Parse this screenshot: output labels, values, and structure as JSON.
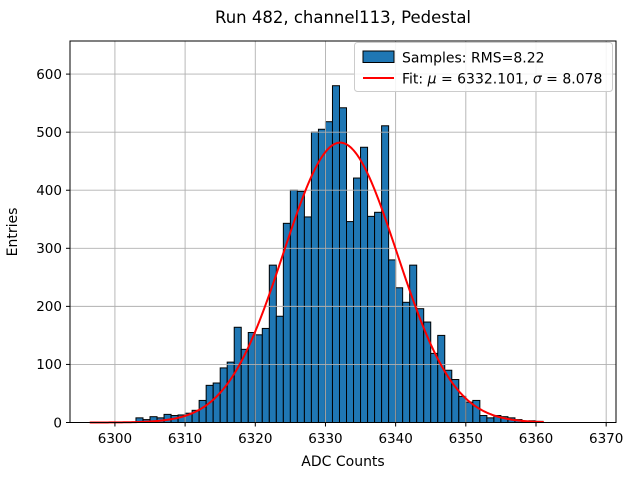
{
  "figure": {
    "title": "Run 482, channel113, Pedestal",
    "xlabel": "ADC Counts",
    "ylabel": "Entries"
  },
  "legend": {
    "samples_label": "Samples: RMS=8.22",
    "fit": {
      "prefix": "Fit: ",
      "mu_symbol": "μ",
      "mu_value": " = 6332.101, ",
      "sigma_symbol": "σ",
      "sigma_value": " = 8.078"
    }
  },
  "chart_data": {
    "type": "bar",
    "subtype": "histogram-with-gaussian-fit",
    "title": "Run 482, channel113, Pedestal",
    "xlabel": "ADC Counts",
    "ylabel": "Entries",
    "xlim": [
      6293.6,
      6371.4
    ],
    "ylim": [
      0,
      657
    ],
    "grid": true,
    "legend_position": "upper right",
    "xticks": [
      6300,
      6310,
      6320,
      6330,
      6340,
      6350,
      6360,
      6370
    ],
    "xtick_labels": [
      "6300",
      "6310",
      "6320",
      "6330",
      "6340",
      "6350",
      "6360",
      "6370"
    ],
    "yticks": [
      0,
      100,
      200,
      300,
      400,
      500,
      600
    ],
    "ytick_labels": [
      "0",
      "100",
      "200",
      "300",
      "400",
      "500",
      "600"
    ],
    "bin_width": 1,
    "histogram": {
      "bin_left_edges": [
        6303,
        6304,
        6305,
        6306,
        6307,
        6308,
        6309,
        6310,
        6311,
        6312,
        6313,
        6314,
        6315,
        6316,
        6317,
        6318,
        6319,
        6320,
        6321,
        6322,
        6323,
        6324,
        6325,
        6326,
        6327,
        6328,
        6329,
        6330,
        6331,
        6332,
        6333,
        6334,
        6335,
        6336,
        6337,
        6338,
        6339,
        6340,
        6341,
        6342,
        6343,
        6344,
        6345,
        6346,
        6347,
        6348,
        6349,
        6350,
        6351,
        6352,
        6353,
        6354,
        6355,
        6356,
        6357,
        6358,
        6359,
        6360
      ],
      "counts": [
        8,
        5,
        10,
        8,
        14,
        12,
        13,
        16,
        21,
        38,
        64,
        68,
        94,
        104,
        164,
        126,
        155,
        151,
        162,
        271,
        183,
        343,
        400,
        398,
        354,
        500,
        505,
        518,
        580,
        542,
        346,
        421,
        474,
        355,
        362,
        511,
        280,
        232,
        207,
        271,
        196,
        173,
        119,
        150,
        90,
        74,
        45,
        35,
        38,
        12,
        8,
        12,
        10,
        8,
        5,
        2,
        3,
        2
      ],
      "rms": 8.22
    },
    "fit": {
      "mu": 6332.101,
      "sigma": 8.078,
      "amplitude": 482,
      "x_range": [
        6296.5,
        6361.2
      ]
    },
    "colors": {
      "bar_fill": "#1f77b4",
      "bar_edge": "#000000",
      "fit_line": "#ff0000",
      "grid": "#b0b0b0",
      "spine": "#000000",
      "legend_edge": "#cccccc"
    }
  }
}
